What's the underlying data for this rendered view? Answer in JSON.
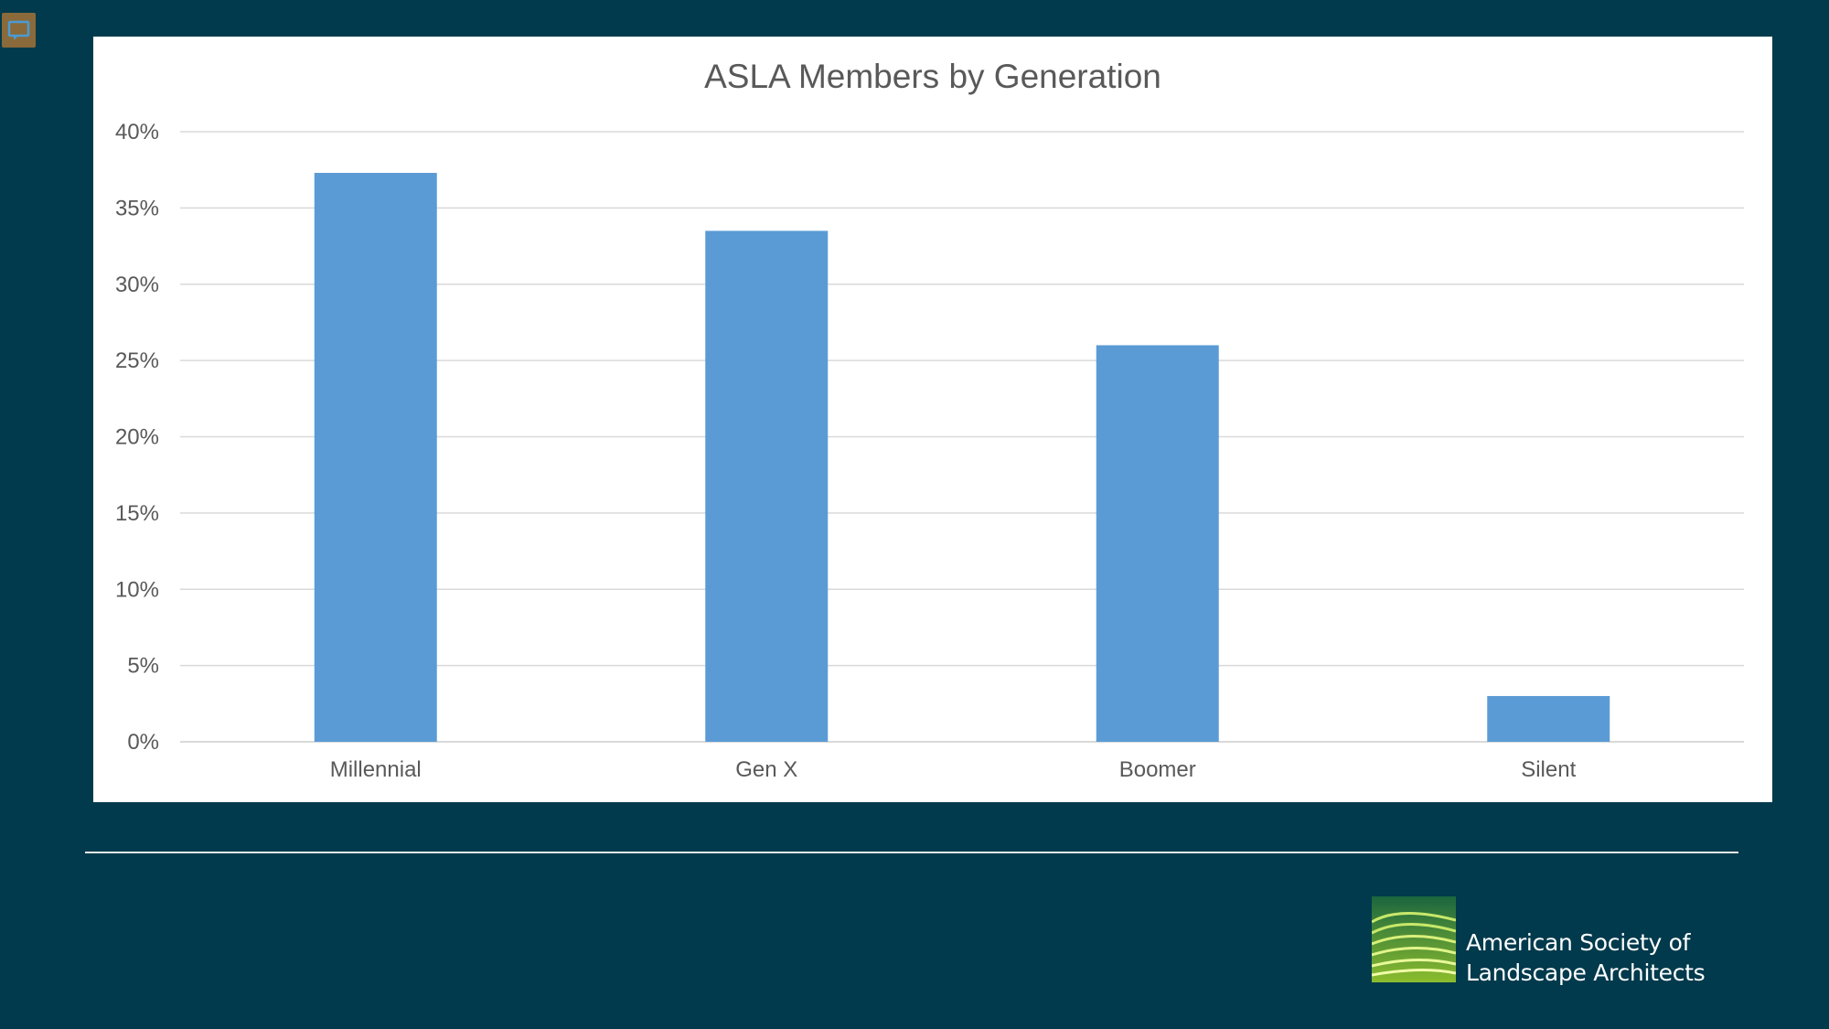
{
  "colors": {
    "background": "#003a4c",
    "panel": "#ffffff",
    "bar": "#5b9bd5",
    "grid": "#d9d9d9",
    "text": "#595959",
    "logo_green": "#7ab929"
  },
  "icons": {
    "comment": "comment-icon",
    "logo": "asla-logo-mark"
  },
  "chart_data": {
    "type": "bar",
    "title": "ASLA Members by Generation",
    "xlabel": "",
    "ylabel": "",
    "categories": [
      "Millennial",
      "Gen X",
      "Boomer",
      "Silent"
    ],
    "values": [
      37.3,
      33.5,
      26.0,
      3.0
    ],
    "value_format": "percent",
    "ylim": [
      0,
      40
    ],
    "yticks": [
      "0%",
      "5%",
      "10%",
      "15%",
      "20%",
      "25%",
      "30%",
      "35%",
      "40%"
    ],
    "ytick_values": [
      0,
      5,
      10,
      15,
      20,
      25,
      30,
      35,
      40
    ],
    "grid": true,
    "legend": "none"
  },
  "logo": {
    "line1": "American Society of",
    "line2": "Landscape Architects"
  }
}
